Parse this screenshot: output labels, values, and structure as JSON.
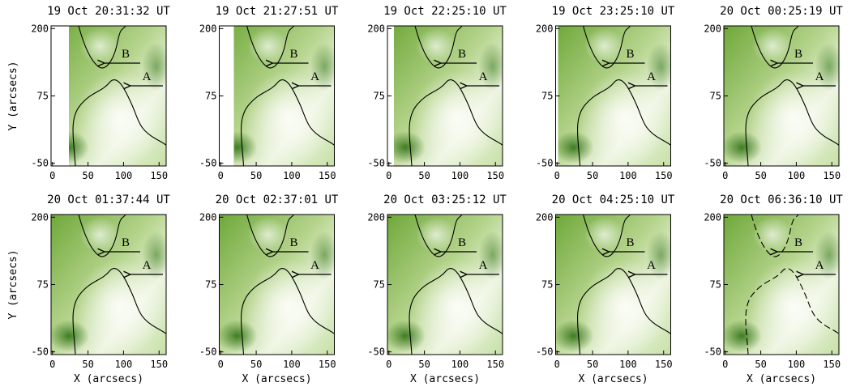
{
  "chart_data": [
    {
      "type": "image",
      "title": "19 Oct 20:31:32 UT",
      "ylabel": "Y (arcsecs)",
      "xlim": [
        -2,
        160
      ],
      "ylim": [
        -55,
        205
      ],
      "xticks": [
        0,
        50,
        100,
        150
      ],
      "yticks": [
        -50,
        75,
        200
      ],
      "annotations": [
        "A",
        "B"
      ]
    },
    {
      "type": "image",
      "title": "19 Oct 21:27:51 UT",
      "xlim": [
        -2,
        160
      ],
      "ylim": [
        -55,
        205
      ],
      "xticks": [
        0,
        50,
        100,
        150
      ],
      "yticks": [
        -50,
        75,
        200
      ],
      "annotations": [
        "A",
        "B"
      ]
    },
    {
      "type": "image",
      "title": "19 Oct 22:25:10 UT",
      "xlim": [
        -2,
        160
      ],
      "ylim": [
        -55,
        205
      ],
      "xticks": [
        0,
        50,
        100,
        150
      ],
      "yticks": [
        -50,
        75,
        200
      ],
      "annotations": [
        "A",
        "B"
      ]
    },
    {
      "type": "image",
      "title": "19 Oct 23:25:10 UT",
      "xlim": [
        -2,
        160
      ],
      "ylim": [
        -55,
        205
      ],
      "xticks": [
        0,
        50,
        100,
        150
      ],
      "yticks": [
        -50,
        75,
        200
      ],
      "annotations": [
        "A",
        "B"
      ]
    },
    {
      "type": "image",
      "title": "20 Oct 00:25:19 UT",
      "xlim": [
        -2,
        160
      ],
      "ylim": [
        -55,
        205
      ],
      "xticks": [
        0,
        50,
        100,
        150
      ],
      "yticks": [
        -50,
        75,
        200
      ],
      "annotations": [
        "A",
        "B"
      ]
    },
    {
      "type": "image",
      "title": "20 Oct 01:37:44 UT",
      "xlabel": "X (arcsecs)",
      "ylabel": "Y (arcsecs)",
      "xlim": [
        -2,
        160
      ],
      "ylim": [
        -55,
        205
      ],
      "xticks": [
        0,
        50,
        100,
        150
      ],
      "yticks": [
        -50,
        75,
        200
      ],
      "annotations": [
        "A",
        "B"
      ]
    },
    {
      "type": "image",
      "title": "20 Oct 02:37:01 UT",
      "xlabel": "X (arcsecs)",
      "xlim": [
        -2,
        160
      ],
      "ylim": [
        -55,
        205
      ],
      "xticks": [
        0,
        50,
        100,
        150
      ],
      "yticks": [
        -50,
        75,
        200
      ],
      "annotations": [
        "A",
        "B"
      ]
    },
    {
      "type": "image",
      "title": "20 Oct 03:25:12 UT",
      "xlabel": "X (arcsecs)",
      "xlim": [
        -2,
        160
      ],
      "ylim": [
        -55,
        205
      ],
      "xticks": [
        0,
        50,
        100,
        150
      ],
      "yticks": [
        -50,
        75,
        200
      ],
      "annotations": [
        "A",
        "B"
      ]
    },
    {
      "type": "image",
      "title": "20 Oct 04:25:10 UT",
      "xlabel": "X (arcsecs)",
      "xlim": [
        -2,
        160
      ],
      "ylim": [
        -55,
        205
      ],
      "xticks": [
        0,
        50,
        100,
        150
      ],
      "yticks": [
        -50,
        75,
        200
      ],
      "annotations": [
        "A",
        "B"
      ]
    },
    {
      "type": "image",
      "title": "20 Oct 06:36:10 UT",
      "xlabel": "X (arcsecs)",
      "xlim": [
        -2,
        160
      ],
      "ylim": [
        -55,
        205
      ],
      "xticks": [
        0,
        50,
        100,
        150
      ],
      "yticks": [
        -50,
        75,
        200
      ],
      "annotations": [
        "A",
        "B"
      ]
    }
  ]
}
